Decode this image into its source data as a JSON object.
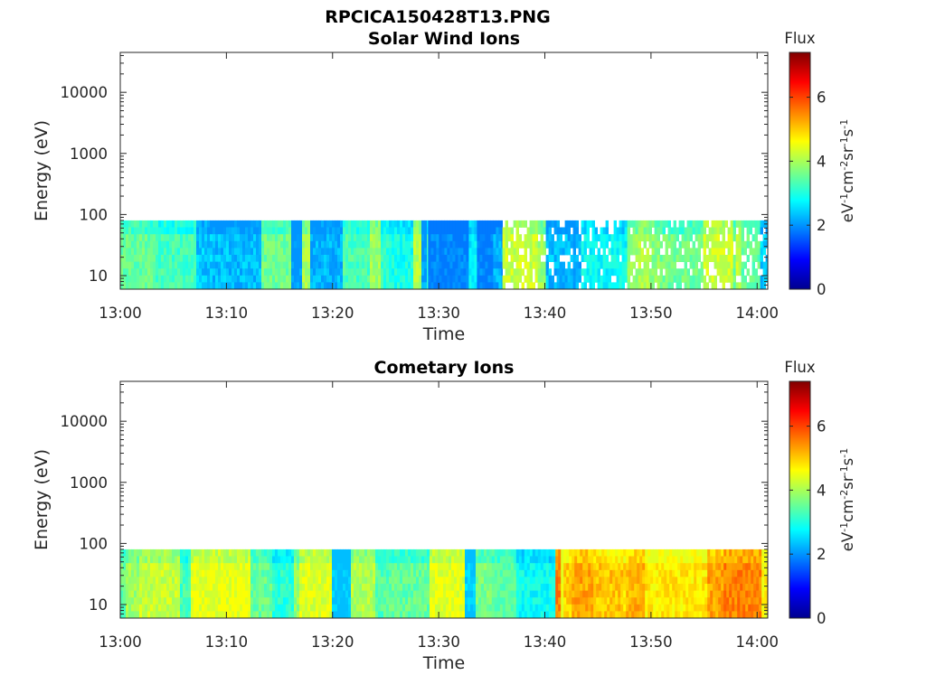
{
  "figure_title": "RPCICA150428T13.PNG",
  "colors": {
    "colormap": [
      "#00008f",
      "#0000ff",
      "#00ffff",
      "#ffff00",
      "#ff0000",
      "#800000"
    ],
    "axis": "#262626"
  },
  "chart_data": [
    {
      "type": "heatmap",
      "title": "Solar Wind Ions",
      "xlabel": "Time",
      "ylabel": "Energy (eV)",
      "x_scale": "time",
      "y_scale": "log",
      "xlim": [
        "13:00",
        "14:01"
      ],
      "ylim": [
        6,
        45000
      ],
      "x_ticks": [
        "13:00",
        "13:10",
        "13:20",
        "13:30",
        "13:40",
        "13:50",
        "14:00"
      ],
      "y_ticks": [
        10,
        100,
        1000,
        10000
      ],
      "y_tick_labels": [
        "10",
        "100",
        "1000",
        "10000"
      ],
      "data_energy_range": [
        6,
        80
      ],
      "colorbar": {
        "title": "Flux",
        "label": "eV-1cm-2sr-1s-1",
        "range": [
          0,
          7.4
        ],
        "ticks": [
          0,
          2,
          4,
          6
        ],
        "tick_labels": [
          "0",
          "2",
          "4",
          "6"
        ]
      },
      "segments": [
        {
          "start": "13:00",
          "end": "13:29",
          "flux_min": 2.0,
          "flux_max": 4.3,
          "gaps": false
        },
        {
          "start": "13:29",
          "end": "13:36",
          "flux_min": 1.8,
          "flux_max": 3.5,
          "gaps": false
        },
        {
          "start": "13:36",
          "end": "14:01",
          "flux_min": 2.0,
          "flux_max": 4.5,
          "gaps": true
        }
      ]
    },
    {
      "type": "heatmap",
      "title": "Cometary Ions",
      "xlabel": "Time",
      "ylabel": "Energy (eV)",
      "x_scale": "time",
      "y_scale": "log",
      "xlim": [
        "13:00",
        "14:01"
      ],
      "ylim": [
        6,
        45000
      ],
      "x_ticks": [
        "13:00",
        "13:10",
        "13:20",
        "13:30",
        "13:40",
        "13:50",
        "14:00"
      ],
      "y_ticks": [
        10,
        100,
        1000,
        10000
      ],
      "y_tick_labels": [
        "10",
        "100",
        "1000",
        "10000"
      ],
      "data_energy_range": [
        6,
        80
      ],
      "colorbar": {
        "title": "Flux",
        "label": "eV-1cm-2sr-1s-1",
        "range": [
          0,
          7.4
        ],
        "ticks": [
          0,
          2,
          4,
          6
        ],
        "tick_labels": [
          "0",
          "2",
          "4",
          "6"
        ]
      },
      "segments": [
        {
          "start": "13:00",
          "end": "13:35",
          "flux_min": 2.3,
          "flux_max": 4.6,
          "gaps": false
        },
        {
          "start": "13:35",
          "end": "13:41",
          "flux_min": 2.0,
          "flux_max": 3.6,
          "gaps": false
        },
        {
          "start": "13:41",
          "end": "14:01",
          "flux_min": 4.4,
          "flux_max": 5.8,
          "gaps": false
        }
      ]
    }
  ]
}
